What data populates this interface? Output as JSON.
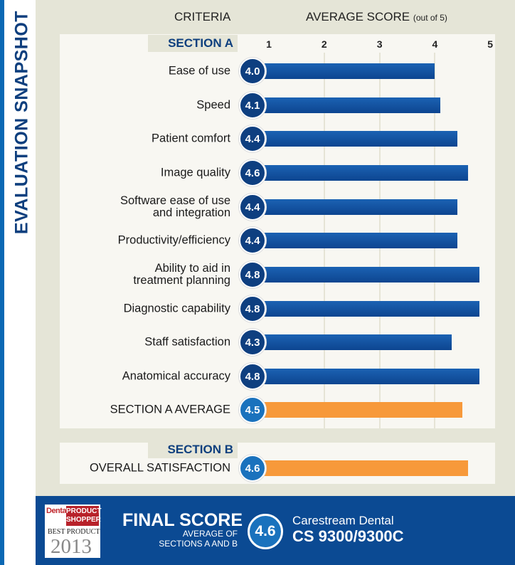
{
  "side_title": "EVALUATION SNAPSHOT",
  "chart_data": {
    "type": "bar",
    "orientation": "horizontal",
    "xlabel": "AVERAGE SCORE",
    "xlabel_note": "(out of 5)",
    "category_header": "CRITERIA",
    "xlim": [
      1,
      5
    ],
    "xticks": [
      "1",
      "2",
      "3",
      "4",
      "5"
    ],
    "grid": true,
    "sections": [
      {
        "name": "SECTION A",
        "categories": [
          "Ease of use",
          "Speed",
          "Patient comfort",
          "Image quality",
          "Software ease of use\nand integration",
          "Productivity/efficiency",
          "Ability to aid in\ntreatment planning",
          "Diagnostic capability",
          "Staff satisfaction",
          "Anatomical accuracy",
          "SECTION A AVERAGE"
        ],
        "values": [
          4.0,
          4.1,
          4.4,
          4.6,
          4.4,
          4.4,
          4.8,
          4.8,
          4.3,
          4.8,
          4.5
        ],
        "labels": [
          "4.0",
          "4.1",
          "4.4",
          "4.6",
          "4.4",
          "4.4",
          "4.8",
          "4.8",
          "4.3",
          "4.8",
          "4.5"
        ],
        "average_index": 10
      },
      {
        "name": "SECTION B",
        "categories": [
          "OVERALL SATISFACTION"
        ],
        "values": [
          4.6
        ],
        "labels": [
          "4.6"
        ],
        "average_index": 0
      }
    ],
    "colors": {
      "bar": "#1258a8",
      "average_bar": "#f7993a",
      "circle": "#0e3f80",
      "average_circle": "#1a72bd"
    }
  },
  "footer": {
    "logo": {
      "line1": "Dental",
      "line2": "PRODUCT SHOPPER",
      "line3": "BEST PRODUCT",
      "year": "2013"
    },
    "final_label": "FINAL SCORE",
    "final_sub1": "AVERAGE OF",
    "final_sub2": "SECTIONS A AND B",
    "final_value": "4.6",
    "brand": "Carestream Dental",
    "model": "CS 9300/9300C"
  }
}
